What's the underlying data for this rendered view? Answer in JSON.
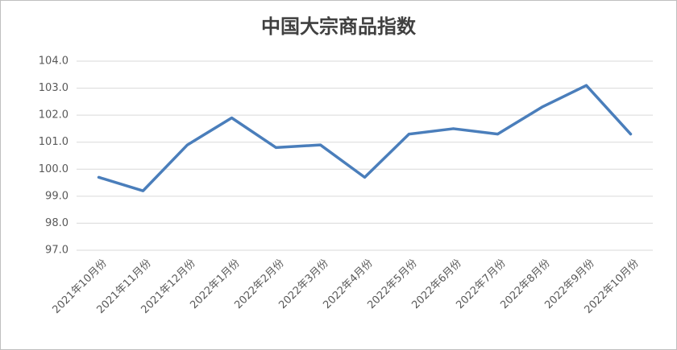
{
  "chart_data": {
    "type": "line",
    "title": "中国大宗商品指数",
    "categories": [
      "2021年10月份",
      "2021年11月份",
      "2021年12月份",
      "2022年1月份",
      "2022年2月份",
      "2022年3月份",
      "2022年4月份",
      "2022年5月份",
      "2022年6月份",
      "2022年7月份",
      "2022年8月份",
      "2022年9月份",
      "2022年10月份"
    ],
    "series": [
      {
        "name": "中国大宗商品指数",
        "color": "#4a7ebb",
        "values": [
          99.7,
          99.2,
          100.9,
          101.9,
          100.8,
          100.9,
          99.7,
          101.3,
          101.5,
          101.3,
          102.3,
          103.1,
          101.3
        ]
      }
    ],
    "ylim": [
      97,
      104
    ],
    "yticks": [
      {
        "value": 97,
        "label": "97.0"
      },
      {
        "value": 98,
        "label": "98.0"
      },
      {
        "value": 99,
        "label": "99.0"
      },
      {
        "value": 100,
        "label": "100.0"
      },
      {
        "value": 101,
        "label": "101.0"
      },
      {
        "value": 102,
        "label": "102.0"
      },
      {
        "value": 103,
        "label": "103.0"
      },
      {
        "value": 104,
        "label": "104.0"
      }
    ],
    "grid": true
  }
}
